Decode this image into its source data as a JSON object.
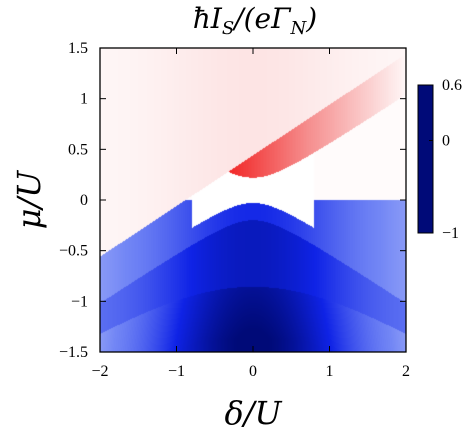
{
  "chart_data": {
    "type": "heatmap",
    "title": "ħI_S/(eΓ_N)",
    "title_parts": {
      "pre": "ħI",
      "sub1": "S",
      "mid": "/(eΓ",
      "sub2": "N",
      "post": ")"
    },
    "xlabel": "δ/U",
    "ylabel": "μ/U",
    "xlim": [
      -2,
      2
    ],
    "ylim": [
      -1.5,
      1.5
    ],
    "x_ticks": [
      -2,
      -1,
      0,
      1,
      2
    ],
    "x_tick_labels": [
      "−2",
      "−1",
      "0",
      "1",
      "2"
    ],
    "y_ticks": [
      1.5,
      1,
      0.5,
      0,
      -0.5,
      -1,
      -1.5
    ],
    "y_tick_labels": [
      "1.5",
      "1",
      "0.5",
      "0",
      "−0.5",
      "−1",
      "−1.5"
    ],
    "colorbar": {
      "range": [
        -1,
        0.6
      ],
      "ticks": [
        0.6,
        0,
        -1
      ],
      "tick_labels": [
        "0.6",
        "0",
        "−1"
      ],
      "colormap": [
        {
          "value": -1,
          "color": "#000a78"
        },
        {
          "value": -0.6,
          "color": "#0f23e6"
        },
        {
          "value": -0.25,
          "color": "#7387f5"
        },
        {
          "value": 0,
          "color": "#ffffff"
        },
        {
          "value": 0.3,
          "color": "#f58c8c"
        },
        {
          "value": 0.6,
          "color": "#f00000"
        }
      ]
    },
    "regions": [
      {
        "name": "upper",
        "description": "above μ = δ/2 + 0.44",
        "value_at_edge": 0.02,
        "value_at_center": 0.08
      },
      {
        "name": "upper-band",
        "description": "between μ = √(δ²/4 + 0.04)+0.02 and μ = δ/2 + 0.44 (δ ≥ -0.8)",
        "value_at_lower_left": 0.6,
        "value_at_right": 0.03
      },
      {
        "name": "lens",
        "description": "between μ = -√(δ²/4+0.04)+0.17 and √(δ²/4+0.04)+0.02 for |δ| < 0.75",
        "value": 0
      },
      {
        "name": "middle",
        "description": "between μ ≈ 0 and lower edge",
        "value_at_edge": -0.25,
        "value_at_center": -0.55
      },
      {
        "name": "lower-band",
        "description": "between μ = -√(δ²/4+0.7)-0.02 and μ = -√(δ²/4+0.04)",
        "value_at_edge": -0.35,
        "value_at_center": -0.75
      },
      {
        "name": "bottom",
        "description": "below μ = -√(δ²/4+0.7)-0.02",
        "value_at_edge": -0.15,
        "value_at_center": -1.0
      }
    ]
  }
}
